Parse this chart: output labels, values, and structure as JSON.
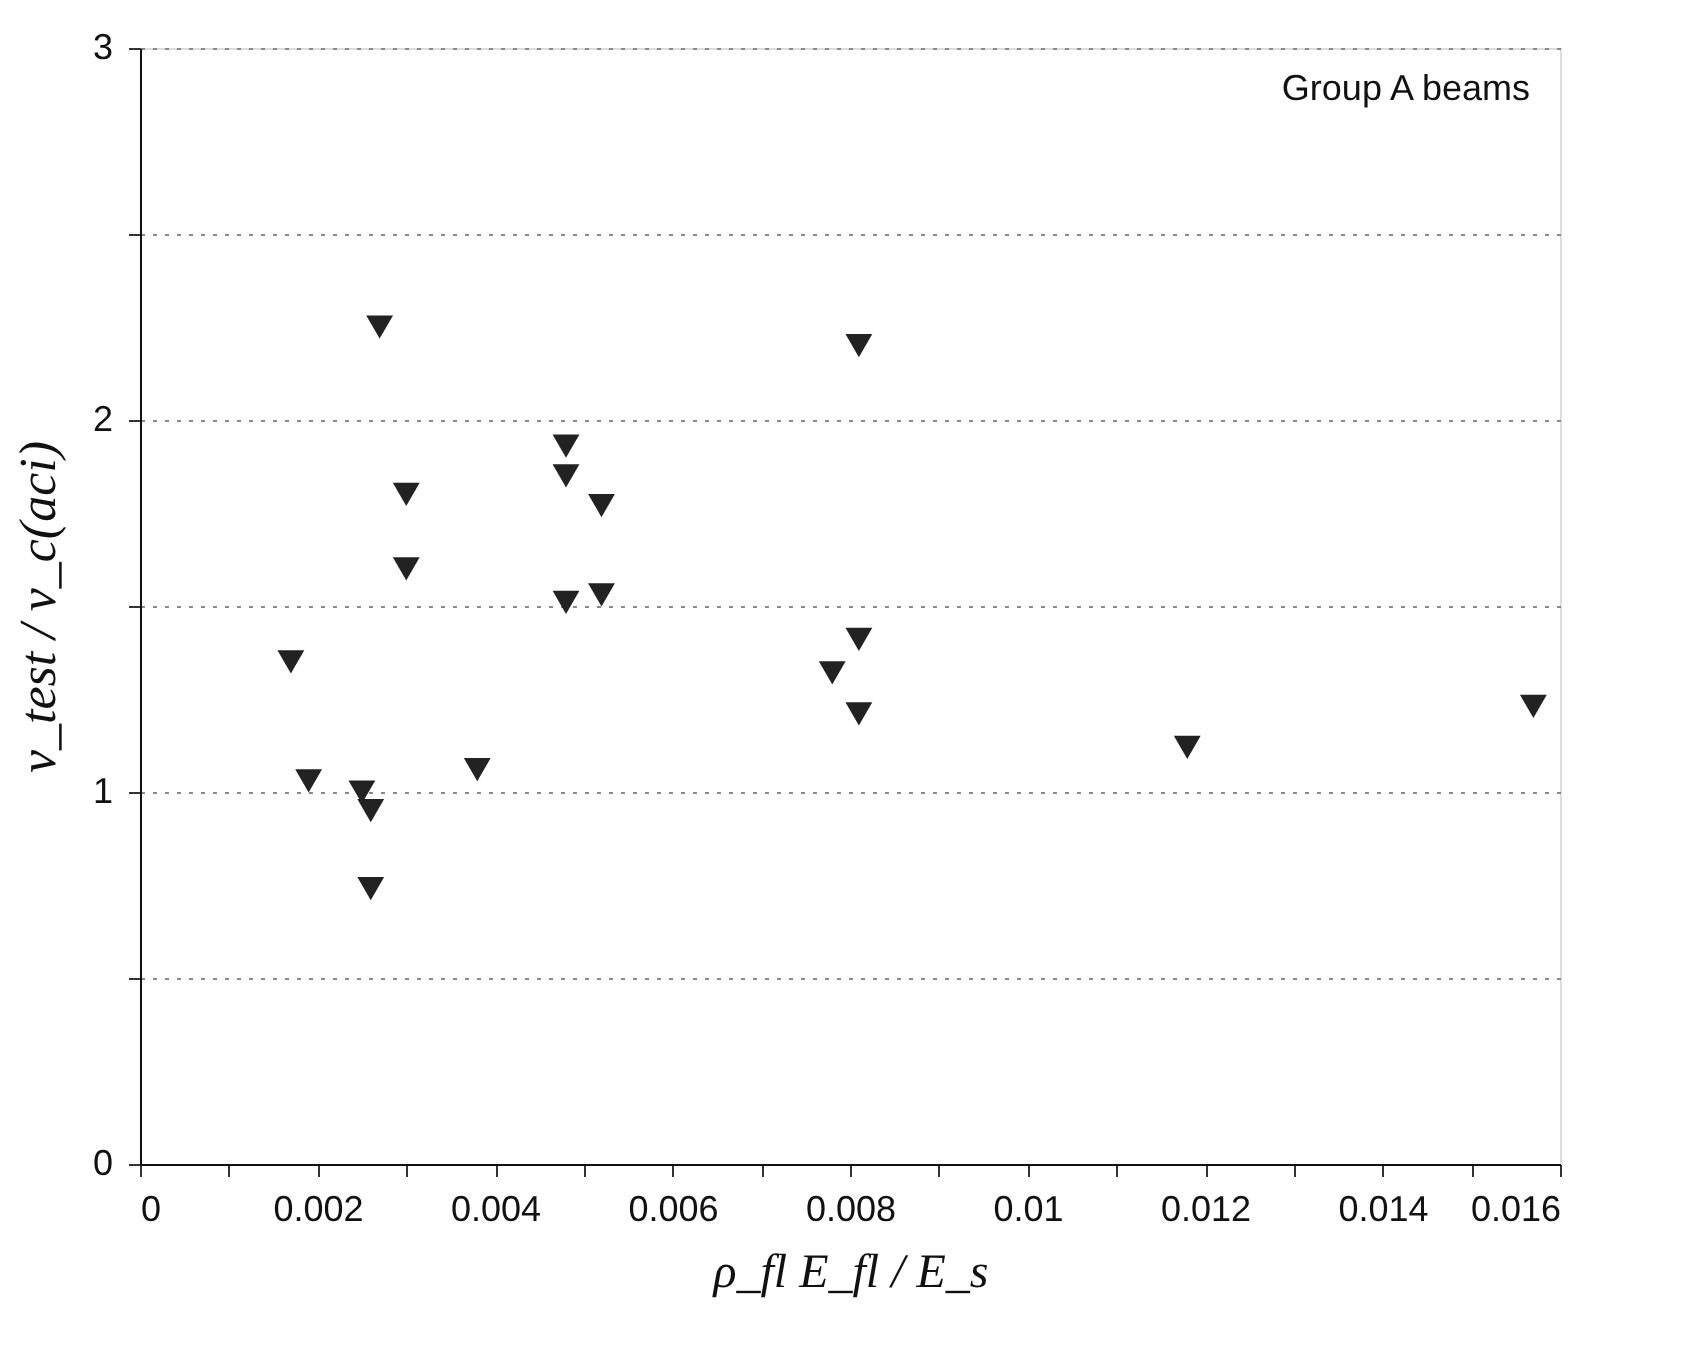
{
  "chart_data": {
    "type": "scatter",
    "xlabel": "ρ_fl E_fl / E_s",
    "ylabel": "v_test / v_c(aci)",
    "annotations": [
      "Group A beams"
    ],
    "x": [
      0.0017,
      0.0019,
      0.0025,
      0.0026,
      0.0026,
      0.0027,
      0.003,
      0.003,
      0.0038,
      0.0048,
      0.0048,
      0.0048,
      0.0052,
      0.0052,
      0.0081,
      0.0081,
      0.0078,
      0.0081,
      0.0118,
      0.0157
    ],
    "values": [
      1.35,
      1.03,
      1.0,
      0.95,
      0.74,
      2.25,
      1.8,
      1.6,
      1.06,
      1.93,
      1.85,
      1.51,
      1.77,
      1.53,
      2.2,
      1.41,
      1.32,
      1.21,
      1.12,
      1.23
    ],
    "color": "#222222",
    "marker": "triangle",
    "grid": "y",
    "xlim": [
      0,
      0.016
    ],
    "ylim": [
      0,
      3
    ],
    "xticks": [
      0,
      {
        "value": 0.001,
        "label": null
      },
      0.002,
      {
        "value": 0.003,
        "label": null
      },
      0.004,
      {
        "value": 0.005,
        "label": null
      },
      0.006,
      {
        "value": 0.007,
        "label": null
      },
      0.008,
      {
        "value": 0.009,
        "label": null
      },
      0.01,
      {
        "value": 0.011,
        "label": null
      },
      0.012,
      {
        "value": 0.013,
        "label": null
      },
      0.014,
      {
        "value": 0.015,
        "label": null
      },
      0.016
    ],
    "yticks": [
      0,
      {
        "value": 0.5,
        "label": null
      },
      1,
      {
        "value": 1.5,
        "label": null
      },
      2,
      {
        "value": 2.5,
        "label": null
      },
      3
    ]
  }
}
